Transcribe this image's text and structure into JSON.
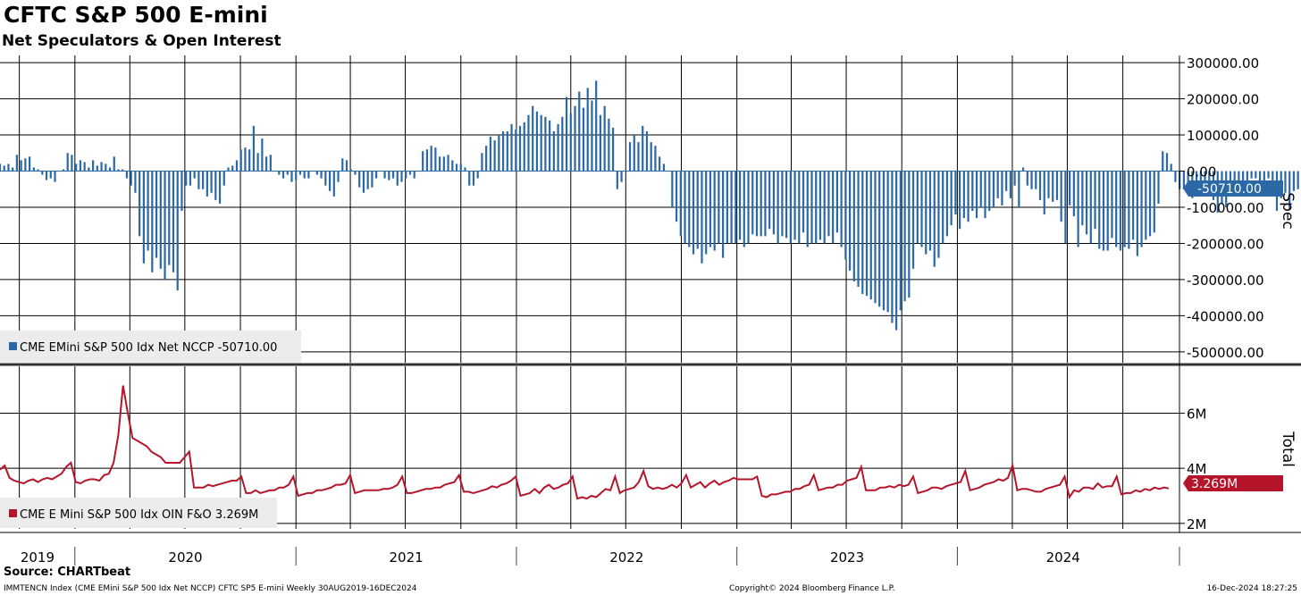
{
  "header": {
    "title": "CFTC S&P 500 E-mini",
    "subtitle": "Net Speculators & Open Interest"
  },
  "footer": {
    "source": "Source: CHARTbeat",
    "index_info": "IMMTENCN Index (CME EMini S&P 500 Idx Net NCCP) CFTC SP5 E-mini  Weekly 30AUG2019-16DEC2024",
    "copyright": "Copyright© 2024 Bloomberg Finance L.P.",
    "timestamp": "16-Dec-2024 18:27:25"
  },
  "colors": {
    "spec": "#2a68a6",
    "total": "#b5152b",
    "grid": "#000000",
    "legend_bg": "#ececec"
  },
  "chart_data": [
    {
      "type": "bar",
      "panel": "top",
      "axis_title": "Spec",
      "legend": "CME EMini S&P 500 Idx Net NCCP -50710.00",
      "last_value_label": "-50710.00",
      "last_value": -50710,
      "ylim": [
        -530000,
        320000
      ],
      "ytick_values": [
        300000,
        200000,
        100000,
        0,
        -100000,
        -200000,
        -300000,
        -400000,
        -500000
      ],
      "ytick_labels": [
        "300000.00",
        "200000.00",
        "100000.00",
        "0.00",
        "-100000.00",
        "-200000.00",
        "-300000.00",
        "-400000.00",
        "-500000.00"
      ],
      "x_start": "2019-08-30",
      "x_end": "2024-12-16",
      "frequency": "weekly",
      "series": [
        {
          "values": [
            20000,
            15000,
            20000,
            10000,
            45000,
            30000,
            35000,
            40000,
            10000,
            5000,
            -10000,
            -25000,
            -20000,
            -30000,
            0,
            5000,
            50000,
            45000,
            20000,
            30000,
            25000,
            10000,
            30000,
            15000,
            25000,
            20000,
            10000,
            40000,
            5000,
            5000,
            -20000,
            -40000,
            -60000,
            -180000,
            -255000,
            -220000,
            -280000,
            -240000,
            -270000,
            -300000,
            -260000,
            -280000,
            -330000,
            -110000,
            -40000,
            -40000,
            -20000,
            -50000,
            -50000,
            -70000,
            -60000,
            -80000,
            -90000,
            -40000,
            10000,
            15000,
            30000,
            60000,
            65000,
            60000,
            125000,
            50000,
            90000,
            40000,
            45000,
            0,
            -10000,
            -20000,
            -10000,
            -30000,
            -25000,
            -10000,
            -20000,
            -20000,
            0,
            -10000,
            -20000,
            -40000,
            -55000,
            -70000,
            -30000,
            35000,
            30000,
            5000,
            -10000,
            -45000,
            -60000,
            -50000,
            -45000,
            -20000,
            0,
            -20000,
            -25000,
            -20000,
            -40000,
            -30000,
            -20000,
            -10000,
            -20000,
            0,
            55000,
            60000,
            70000,
            65000,
            40000,
            40000,
            45000,
            30000,
            20000,
            20000,
            10000,
            -40000,
            -40000,
            -20000,
            50000,
            70000,
            95000,
            85000,
            100000,
            110000,
            110000,
            130000,
            115000,
            125000,
            135000,
            155000,
            180000,
            165000,
            155000,
            150000,
            140000,
            110000,
            130000,
            150000,
            205000,
            160000,
            180000,
            220000,
            175000,
            230000,
            195000,
            250000,
            155000,
            180000,
            145000,
            120000,
            -50000,
            -30000,
            0,
            80000,
            100000,
            80000,
            125000,
            110000,
            80000,
            70000,
            40000,
            20000,
            0,
            -100000,
            -140000,
            -180000,
            -200000,
            -210000,
            -230000,
            -215000,
            -255000,
            -230000,
            -210000,
            -220000,
            -200000,
            -240000,
            -200000,
            -200000,
            -200000,
            -190000,
            -210000,
            -200000,
            -175000,
            -180000,
            -180000,
            -180000,
            -160000,
            -175000,
            -200000,
            -180000,
            -185000,
            -200000,
            -190000,
            -200000,
            -170000,
            -210000,
            -200000,
            -200000,
            -190000,
            -200000,
            -180000,
            -200000,
            -170000,
            -210000,
            -245000,
            -275000,
            -305000,
            -320000,
            -340000,
            -345000,
            -355000,
            -365000,
            -375000,
            -385000,
            -390000,
            -420000,
            -440000,
            -385000,
            -360000,
            -350000,
            -270000,
            -200000,
            -210000,
            -230000,
            -220000,
            -265000,
            -240000,
            -200000,
            -180000,
            -150000,
            -120000,
            -160000,
            -130000,
            -140000,
            -110000,
            -130000,
            -100000,
            -130000,
            -110000,
            -100000,
            -75000,
            -95000,
            -55000,
            -75000,
            -40000,
            -100000,
            10000,
            -40000,
            -50000,
            -50000,
            -80000,
            -120000,
            -75000,
            -85000,
            -80000,
            -140000,
            -200000,
            -95000,
            -125000,
            -210000,
            -150000,
            -175000,
            -200000,
            -160000,
            -215000,
            -220000,
            -220000,
            -185000,
            -210000,
            -220000,
            -210000,
            -215000,
            -190000,
            -235000,
            -210000,
            -190000,
            -180000,
            -170000,
            -90000,
            55000,
            50000,
            20000,
            -30000,
            -50000,
            -50000,
            -40000,
            -75000,
            -50000,
            -40000,
            -30000,
            -70000,
            -80000,
            -115000,
            -90000,
            -100000,
            -70000,
            -40000,
            -70000,
            -50000,
            -45000,
            -20000,
            -20000,
            -60000,
            -40000,
            -20000,
            -50000,
            -110000,
            -75000,
            -60000,
            -105000,
            -55000,
            -50000,
            -130000,
            -40000,
            -50000,
            0,
            5000,
            25000,
            25000,
            40000,
            75000,
            125000,
            60000,
            50000,
            0,
            -10000,
            -85000,
            -50710
          ]
        }
      ]
    },
    {
      "type": "line",
      "panel": "bottom",
      "axis_title": "Total",
      "legend": "CME E Mini S&P 500 Idx OIN F&O 3.269M",
      "last_value_label": "3.269M",
      "last_value": 3269000,
      "ylim": [
        1800000,
        7700000
      ],
      "ytick_values": [
        6000000,
        4000000,
        2000000
      ],
      "ytick_labels": [
        "6M",
        "4M",
        "2M"
      ],
      "x_start": "2019-08-30",
      "x_end": "2024-12-16",
      "frequency": "weekly",
      "series": [
        {
          "values": [
            3950000,
            4100000,
            3650000,
            3550000,
            3500000,
            3450000,
            3550000,
            3600000,
            3500000,
            3600000,
            3650000,
            3600000,
            3700000,
            3800000,
            4050000,
            4200000,
            3500000,
            3450000,
            3550000,
            3600000,
            3600000,
            3550000,
            3750000,
            3800000,
            4200000,
            5200000,
            7000000,
            6000000,
            5100000,
            5000000,
            4900000,
            4800000,
            4600000,
            4500000,
            4400000,
            4200000,
            4200000,
            4200000,
            4200000,
            4400000,
            4600000,
            3300000,
            3300000,
            3300000,
            3400000,
            3350000,
            3400000,
            3450000,
            3500000,
            3550000,
            3550000,
            3700000,
            3100000,
            3100000,
            3200000,
            3100000,
            3150000,
            3200000,
            3200000,
            3300000,
            3300000,
            3400000,
            3700000,
            3000000,
            3050000,
            3100000,
            3100000,
            3200000,
            3200000,
            3250000,
            3300000,
            3400000,
            3400000,
            3450000,
            3750000,
            3100000,
            3150000,
            3200000,
            3200000,
            3200000,
            3200000,
            3250000,
            3250000,
            3300000,
            3400000,
            3700000,
            3100000,
            3100000,
            3150000,
            3200000,
            3250000,
            3250000,
            3300000,
            3300000,
            3400000,
            3450000,
            3500000,
            3750000,
            3150000,
            3150000,
            3100000,
            3150000,
            3200000,
            3250000,
            3350000,
            3300000,
            3400000,
            3450000,
            3550000,
            3700000,
            3000000,
            3050000,
            3100000,
            3250000,
            3100000,
            3300000,
            3400000,
            3250000,
            3300000,
            3400000,
            3450000,
            3700000,
            2900000,
            2950000,
            2900000,
            3000000,
            2950000,
            3100000,
            3250000,
            3200000,
            3700000,
            3100000,
            3200000,
            3250000,
            3300000,
            3500000,
            3900000,
            3350000,
            3250000,
            3300000,
            3250000,
            3300000,
            3400000,
            3300000,
            3450000,
            3750000,
            3300000,
            3400000,
            3500000,
            3300000,
            3450000,
            3550000,
            3400000,
            3500000,
            3550000,
            3650000,
            3600000,
            3600000,
            3600000,
            3600000,
            3700000,
            3000000,
            2950000,
            3050000,
            3050000,
            3100000,
            3150000,
            3150000,
            3250000,
            3250000,
            3350000,
            3400000,
            3750000,
            3200000,
            3250000,
            3300000,
            3300000,
            3400000,
            3400000,
            3550000,
            3600000,
            3650000,
            4050000,
            3200000,
            3200000,
            3200000,
            3300000,
            3300000,
            3350000,
            3300000,
            3400000,
            3350000,
            3400000,
            3700000,
            3100000,
            3150000,
            3200000,
            3300000,
            3300000,
            3250000,
            3350000,
            3400000,
            3450000,
            3500000,
            3900000,
            3200000,
            3250000,
            3300000,
            3400000,
            3450000,
            3500000,
            3600000,
            3550000,
            3650000,
            4100000,
            3200000,
            3250000,
            3250000,
            3200000,
            3150000,
            3150000,
            3250000,
            3300000,
            3350000,
            3400000,
            3700000,
            2950000,
            3200000,
            3150000,
            3300000,
            3300000,
            3250000,
            3450000,
            3300000,
            3350000,
            3350000,
            3700000,
            3050000,
            3100000,
            3100000,
            3200000,
            3150000,
            3250000,
            3200000,
            3300000,
            3250000,
            3300000,
            3269000
          ]
        }
      ]
    }
  ],
  "x_axis": {
    "years": [
      "2019",
      "2020",
      "2021",
      "2022",
      "2023",
      "2024"
    ]
  }
}
